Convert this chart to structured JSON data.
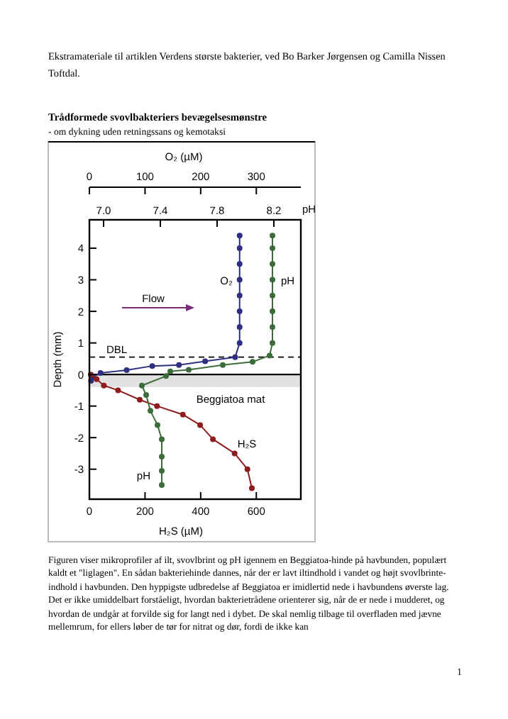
{
  "chart_data": [
    {
      "type": "line",
      "title": "Trådformede svovlbakteriers bevægelsesmønstre",
      "subtitle": "- om dykning uden retningssans og kemotaksi",
      "xlabel": "H₂S (µM)",
      "ylabel": "Depth (mm)",
      "x2label": "O₂ (µM)",
      "xlim": [
        0,
        760
      ],
      "xticks": [
        0,
        200,
        400,
        600
      ],
      "x2lim": [
        0,
        380
      ],
      "x2ticks": [
        0,
        100,
        200,
        300
      ],
      "ylim": [
        -3.95,
        4.9
      ],
      "yticks": [
        -3,
        -2,
        -1,
        0,
        1,
        2,
        3,
        4
      ],
      "marker": "circle",
      "line_style": "solid",
      "series": [
        {
          "name": "O₂",
          "color": "#2e2f80",
          "axis": "x2",
          "x": [
            270,
            270,
            270,
            270,
            270,
            270,
            270,
            270,
            262,
            208,
            161,
            113,
            67,
            20,
            5,
            3
          ],
          "values": [
            4.4,
            4,
            3.5,
            3,
            2.5,
            2,
            1.5,
            1,
            0.55,
            0.42,
            0.3,
            0.27,
            0.14,
            0.05,
            -0.1,
            -0.2
          ]
        },
        {
          "name": "H₂S",
          "color": "#8e1c1c",
          "x": [
            5,
            26,
            52,
            103,
            181,
            243,
            336,
            398,
            444,
            522,
            568,
            584
          ],
          "values": [
            0,
            -0.15,
            -0.35,
            -0.5,
            -0.8,
            -1,
            -1.27,
            -1.6,
            -2.05,
            -2.5,
            -3,
            -3.6
          ]
        }
      ],
      "ref_lines": [
        {
          "axis": "y",
          "value": 0.55,
          "label": "DBL",
          "line_style": "dashed"
        },
        {
          "axis": "y",
          "value": 0
        }
      ],
      "bands": [
        {
          "axis": "y",
          "from": 0,
          "to": -0.4,
          "label": "Beggiatoa mat",
          "color": "#e2e2e2"
        }
      ],
      "annotations": [
        "Ekstramateriale til artiklen Verdens største bakterier, ved Bo Barker Jørgensen og Camilla Nissen Toftdal.",
        "Figuren viser mikroprofiler af ilt, svovlbrint og pH igennem en Beggiatoa-hinde på havbunden, populært kaldt et \"liglagen\". En sådan bakteriehinde dannes, når der er lavt iltindhold i vandet og højt svovlbrinte-indhold i havbunden. Den hyppigste udbredelse af Beggiatoa er imidlertid nede i havbundens øverste lag.",
        "Det er ikke umiddelbart forståeligt, hvordan bakterietrådene orienterer sig, når de er nede i mudderet, og hvordan de undgår at forvilde sig for langt ned i dybet. De skal nemlig tilbage til overfladen med jævne mellemrum, for ellers løber de tør for nitrat og dør, fordi de ikke kan",
        "1",
        "Flow"
      ]
    },
    {
      "type": "line",
      "xlabel": "pH",
      "xlim": [
        6.9,
        8.39
      ],
      "xticks": [
        {
          "value": 7,
          "label": "7.0"
        },
        7.4,
        7.8,
        8.2
      ],
      "ylim": [
        -3.95,
        4.9
      ],
      "tick_labels": "x",
      "marker": "circle",
      "line_style": "solid",
      "series": [
        {
          "name": "pH",
          "color": "#3d6b3a",
          "x": [
            8.19,
            8.19,
            8.19,
            8.19,
            8.19,
            8.19,
            8.19,
            8.19,
            8.17,
            8.05,
            7.84,
            7.6,
            7.47,
            7.44,
            7.27,
            7.3,
            7.33,
            7.38,
            7.41,
            7.41,
            7.41,
            7.41
          ],
          "values": [
            4.4,
            4,
            3.5,
            3,
            2.5,
            2,
            1.5,
            1,
            0.6,
            0.4,
            0.3,
            0.15,
            0.1,
            -0.05,
            -0.35,
            -0.65,
            -1.15,
            -1.6,
            -2.05,
            -2.6,
            -3.05,
            -3.5
          ]
        }
      ],
      "annotations": [
        "pH"
      ]
    }
  ]
}
